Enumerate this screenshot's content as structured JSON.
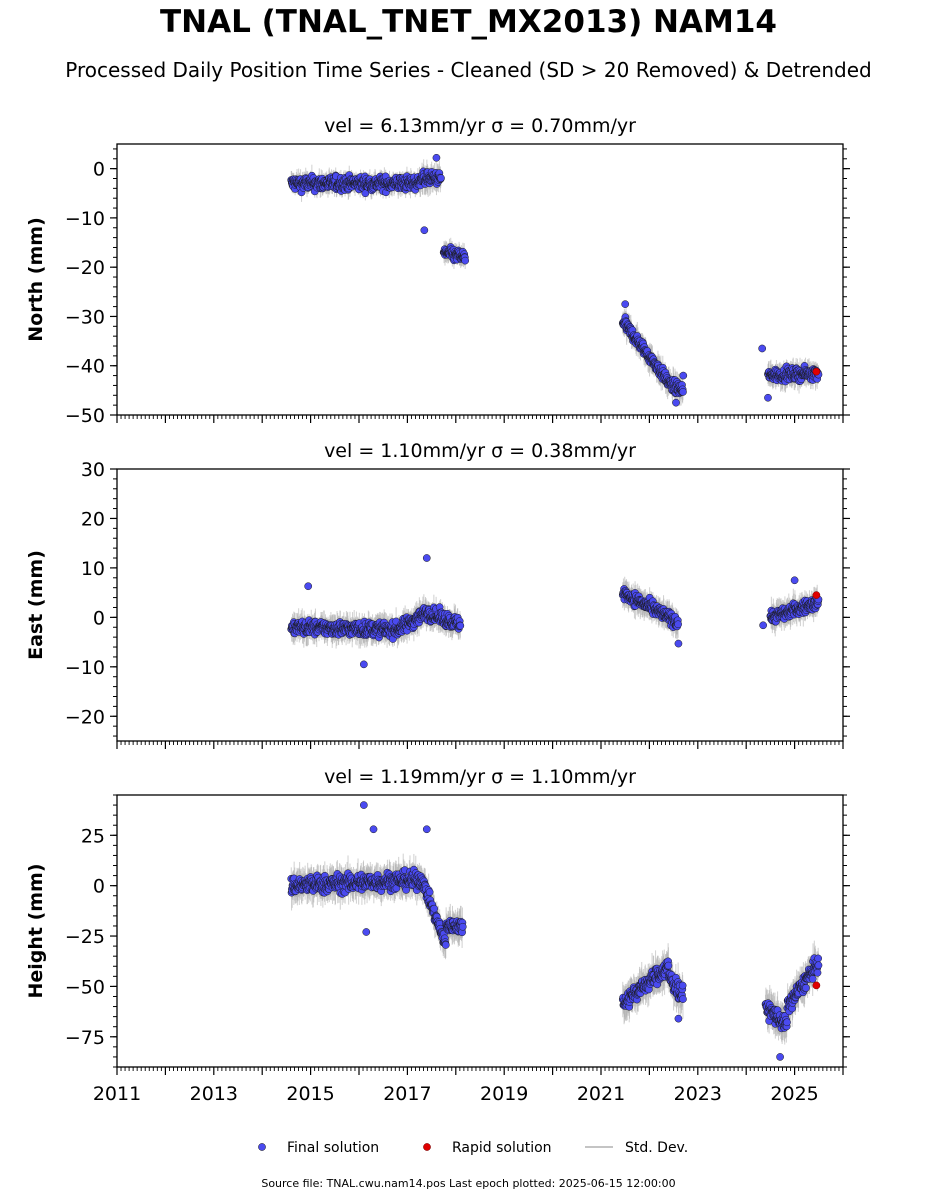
{
  "figure": {
    "title": "TNAL (TNAL_TNET_MX2013) NAM14",
    "subtitle": "Processed Daily Position Time Series - Cleaned (SD > 20 Removed) & Detrended",
    "footer": "Source file: TNAL.cwu.nam14.pos  Last epoch plotted: 2025-06-15 12:00:00"
  },
  "legend": {
    "final": "Final solution",
    "rapid": "Rapid solution",
    "stddev": "Std. Dev."
  },
  "colors": {
    "final": "#4a4af0",
    "final_edge": "#1a1a1a",
    "rapid": "#e00000",
    "stddev": "#b0b0b0"
  },
  "chart_data": [
    {
      "type": "scatter",
      "title": "vel = 6.13mm/yr   σ = 0.70mm/yr",
      "ylabel": "North (mm)",
      "xlabel": "",
      "xlim": [
        2011,
        2026
      ],
      "ylim": [
        -50,
        5
      ],
      "yticks": [
        0,
        -10,
        -20,
        -30,
        -40,
        -50
      ],
      "ytick_labels": [
        "0",
        "−10",
        "−20",
        "−30",
        "−40",
        "−50"
      ],
      "show_xtick_labels": false,
      "series": [
        {
          "name": "Final solution",
          "segments": [
            {
              "x0": 2014.6,
              "x1": 2017.25,
              "y0": -3,
              "y1": -3,
              "amp": 1.8,
              "sd": 1.5
            },
            {
              "x0": 2017.25,
              "x1": 2017.7,
              "y0": -2,
              "y1": -2,
              "amp": 1.6,
              "sd": 2.0
            },
            {
              "x0": 2017.75,
              "x1": 2018.2,
              "y0": -17,
              "y1": -18,
              "amp": 1.5,
              "sd": 1.5
            },
            {
              "x0": 2021.45,
              "x1": 2022.45,
              "y0": -31,
              "y1": -44,
              "amp": 1.5,
              "sd": 2.0
            },
            {
              "x0": 2022.45,
              "x1": 2022.7,
              "y0": -44,
              "y1": -45,
              "amp": 1.6,
              "sd": 2.0
            },
            {
              "x0": 2024.45,
              "x1": 2025.5,
              "y0": -42,
              "y1": -41.5,
              "amp": 1.5,
              "sd": 1.8
            }
          ],
          "outliers": [
            {
              "x": 2017.35,
              "y": -12.5
            },
            {
              "x": 2017.6,
              "y": 2.2
            },
            {
              "x": 2024.33,
              "y": -36.5
            },
            {
              "x": 2024.45,
              "y": -46.5
            },
            {
              "x": 2022.55,
              "y": -47.5
            },
            {
              "x": 2022.7,
              "y": -42
            },
            {
              "x": 2021.5,
              "y": -27.5
            }
          ]
        },
        {
          "name": "Rapid solution",
          "points": [
            {
              "x": 2025.45,
              "y": -41.2
            }
          ]
        }
      ]
    },
    {
      "type": "scatter",
      "title": "vel = 1.10mm/yr   σ = 0.38mm/yr",
      "ylabel": "East (mm)",
      "xlabel": "",
      "xlim": [
        2011,
        2026
      ],
      "ylim": [
        -25,
        30
      ],
      "yticks": [
        30,
        20,
        10,
        0,
        -10,
        -20
      ],
      "ytick_labels": [
        "30",
        "20",
        "10",
        "0",
        "−10",
        "−20"
      ],
      "show_xtick_labels": false,
      "series": [
        {
          "name": "Final solution",
          "segments": [
            {
              "x0": 2014.6,
              "x1": 2016.8,
              "y0": -2,
              "y1": -2.5,
              "amp": 1.8,
              "sd": 2.0
            },
            {
              "x0": 2016.8,
              "x1": 2017.4,
              "y0": -2.5,
              "y1": 1,
              "amp": 1.8,
              "sd": 2.0
            },
            {
              "x0": 2017.4,
              "x1": 2018.1,
              "y0": 1,
              "y1": -1.5,
              "amp": 1.8,
              "sd": 2.0
            },
            {
              "x0": 2021.45,
              "x1": 2022.6,
              "y0": 5,
              "y1": -1,
              "amp": 1.6,
              "sd": 2.0
            },
            {
              "x0": 2024.5,
              "x1": 2025.5,
              "y0": 0,
              "y1": 3,
              "amp": 1.6,
              "sd": 2.0
            }
          ],
          "outliers": [
            {
              "x": 2017.4,
              "y": 12
            },
            {
              "x": 2014.95,
              "y": 6.3
            },
            {
              "x": 2016.1,
              "y": -9.5
            },
            {
              "x": 2022.6,
              "y": -5.3
            },
            {
              "x": 2024.35,
              "y": -1.6
            },
            {
              "x": 2025.0,
              "y": 7.5
            }
          ]
        },
        {
          "name": "Rapid solution",
          "points": [
            {
              "x": 2025.45,
              "y": 4.5
            }
          ]
        }
      ]
    },
    {
      "type": "scatter",
      "title": "vel = 1.19mm/yr   σ = 1.10mm/yr",
      "ylabel": "Height (mm)",
      "xlabel": "",
      "xlim": [
        2011,
        2026
      ],
      "ylim": [
        -90,
        45
      ],
      "yticks": [
        25,
        0,
        -25,
        -50,
        -75
      ],
      "ytick_labels": [
        "25",
        "0",
        "−25",
        "−50",
        "−75"
      ],
      "xticks": [
        2011,
        2013,
        2015,
        2017,
        2019,
        2021,
        2023,
        2025
      ],
      "xtick_labels": [
        "2011",
        "2013",
        "2015",
        "2017",
        "2019",
        "2021",
        "2023",
        "2025"
      ],
      "show_xtick_labels": true,
      "series": [
        {
          "name": "Final solution",
          "segments": [
            {
              "x0": 2014.6,
              "x1": 2017.3,
              "y0": 0,
              "y1": 3,
              "amp": 5.5,
              "sd": 6.0
            },
            {
              "x0": 2017.3,
              "x1": 2017.8,
              "y0": 3,
              "y1": -30,
              "amp": 4.0,
              "sd": 6.0
            },
            {
              "x0": 2017.8,
              "x1": 2018.15,
              "y0": -20,
              "y1": -20,
              "amp": 4.0,
              "sd": 6.0
            },
            {
              "x0": 2021.45,
              "x1": 2022.4,
              "y0": -58,
              "y1": -40,
              "amp": 5.0,
              "sd": 6.5
            },
            {
              "x0": 2022.4,
              "x1": 2022.7,
              "y0": -45,
              "y1": -55,
              "amp": 6.0,
              "sd": 6.5
            },
            {
              "x0": 2024.4,
              "x1": 2024.85,
              "y0": -60,
              "y1": -70,
              "amp": 5.5,
              "sd": 7.0
            },
            {
              "x0": 2024.85,
              "x1": 2025.5,
              "y0": -60,
              "y1": -38,
              "amp": 5.0,
              "sd": 6.5
            }
          ],
          "outliers": [
            {
              "x": 2016.1,
              "y": 40
            },
            {
              "x": 2016.3,
              "y": 28
            },
            {
              "x": 2016.15,
              "y": -23
            },
            {
              "x": 2017.4,
              "y": 28
            },
            {
              "x": 2024.7,
              "y": -85
            },
            {
              "x": 2022.6,
              "y": -66
            }
          ]
        },
        {
          "name": "Rapid solution",
          "points": [
            {
              "x": 2025.45,
              "y": -49.5
            }
          ]
        }
      ]
    }
  ]
}
